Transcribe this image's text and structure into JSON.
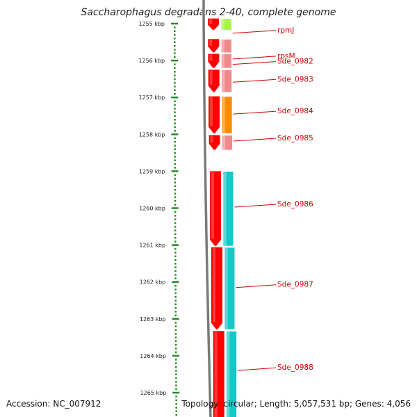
{
  "title": "Saccharophagus degradans 2-40, complete genome",
  "footer": {
    "accession": "Accession: NC_007912",
    "stats": "Topology: circular; Length: 5,057,531 bp; Genes: 4,056"
  },
  "scale": {
    "ticks": [
      {
        "kbp": 1255,
        "label": "1255 kbp"
      },
      {
        "kbp": 1256,
        "label": "1256 kbp"
      },
      {
        "kbp": 1257,
        "label": "1257 kbp"
      },
      {
        "kbp": 1258,
        "label": "1258 kbp"
      },
      {
        "kbp": 1259,
        "label": "1259 kbp"
      },
      {
        "kbp": 1260,
        "label": "1260 kbp"
      },
      {
        "kbp": 1261,
        "label": "1261 kbp"
      },
      {
        "kbp": 1262,
        "label": "1262 kbp"
      },
      {
        "kbp": 1263,
        "label": "1263 kbp"
      },
      {
        "kbp": 1264,
        "label": "1264 kbp"
      },
      {
        "kbp": 1265,
        "label": "1265 kbp"
      }
    ]
  },
  "genes": [
    {
      "name": "rpmJ",
      "start_kbp": 1254.86,
      "end_kbp": 1255.17,
      "cog_color": "#a6f54a"
    },
    {
      "name": "rpsM",
      "start_kbp": 1255.42,
      "end_kbp": 1255.78,
      "cog_color": "#f08a8a"
    },
    {
      "name": "Sde_0982",
      "start_kbp": 1255.82,
      "end_kbp": 1256.2,
      "cog_color": "#f08a8a"
    },
    {
      "name": "Sde_0983",
      "start_kbp": 1256.25,
      "end_kbp": 1256.85,
      "cog_color": "#f08a8a"
    },
    {
      "name": "Sde_0984",
      "start_kbp": 1256.97,
      "end_kbp": 1257.97,
      "cog_color": "#ff8c00"
    },
    {
      "name": "Sde_0985",
      "start_kbp": 1258.02,
      "end_kbp": 1258.42,
      "cog_color": "#f08a8a"
    },
    {
      "name": "Sde_0986",
      "start_kbp": 1259.0,
      "end_kbp": 1261.02,
      "cog_color": "#14c8c8"
    },
    {
      "name": "Sde_0987",
      "start_kbp": 1261.06,
      "end_kbp": 1263.28,
      "cog_color": "#14c8c8"
    },
    {
      "name": "Sde_0988",
      "start_kbp": 1263.33,
      "end_kbp": 1265.9,
      "cog_color": "#14c8c8"
    }
  ],
  "colors": {
    "cds": "#ff0000",
    "backbone": "#7a7a7a",
    "label": "#cc0000",
    "tick": "#228b22"
  }
}
